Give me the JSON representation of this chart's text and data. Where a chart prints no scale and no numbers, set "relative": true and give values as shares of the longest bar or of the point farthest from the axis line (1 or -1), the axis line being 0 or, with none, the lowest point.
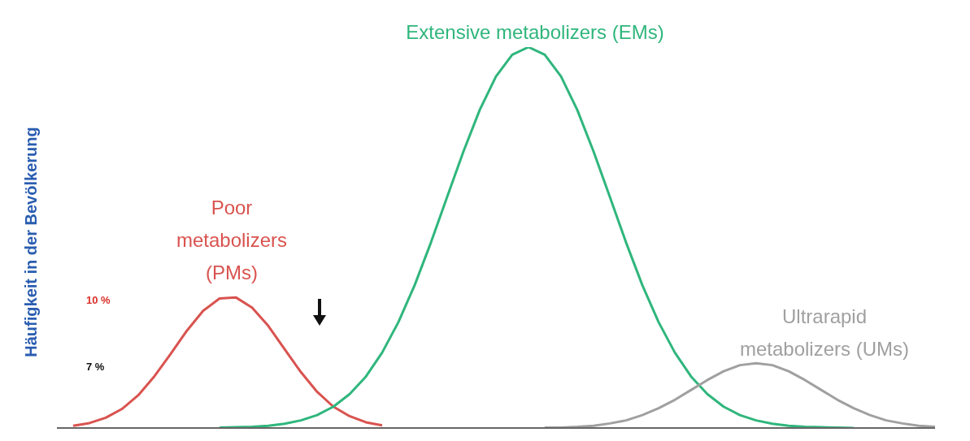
{
  "chart_data": {
    "type": "line",
    "relative": true,
    "ylabel": "Häufigkeit in der Bevölkerung",
    "categories": [
      null,
      null,
      null,
      null,
      null,
      null,
      null,
      null,
      null,
      null,
      null,
      null,
      null,
      null,
      null,
      null,
      null,
      null,
      null,
      null,
      null,
      null,
      null,
      null,
      null,
      null,
      null,
      null,
      null,
      null,
      null,
      null,
      null,
      null,
      null,
      null,
      null,
      null,
      null,
      null,
      null,
      null,
      null,
      null,
      null,
      null,
      null,
      null,
      null,
      null,
      null,
      null,
      null,
      null,
      null
    ],
    "series": [
      {
        "name": "Poor metabolizers (PMs)",
        "color": "#d9534f",
        "values": [
          null,
          0.006,
          0.013,
          0.027,
          0.05,
          0.086,
          0.136,
          0.195,
          0.256,
          0.308,
          0.34,
          0.343,
          0.316,
          0.268,
          0.207,
          0.147,
          0.095,
          0.056,
          0.031,
          0.015,
          0.007,
          null,
          null,
          null,
          null,
          null,
          null,
          null,
          null,
          null,
          null,
          null,
          null,
          null,
          null,
          null,
          null,
          null,
          null,
          null,
          null,
          null,
          null,
          null,
          null,
          null,
          null,
          null,
          null,
          null,
          null,
          null,
          null,
          null,
          null
        ]
      },
      {
        "name": "Extensive metabolizers (EMs)",
        "color": "#2fb67c",
        "values": [
          null,
          null,
          null,
          null,
          null,
          null,
          null,
          null,
          null,
          null,
          0.001,
          0.002,
          0.003,
          0.006,
          0.011,
          0.02,
          0.034,
          0.056,
          0.089,
          0.135,
          0.198,
          0.278,
          0.375,
          0.487,
          0.607,
          0.726,
          0.835,
          0.923,
          0.98,
          1,
          0.98,
          0.923,
          0.835,
          0.726,
          0.607,
          0.487,
          0.375,
          0.278,
          0.198,
          0.135,
          0.089,
          0.056,
          0.034,
          0.02,
          0.011,
          0.006,
          0.003,
          0.002,
          0.001,
          0,
          null,
          null,
          null,
          null,
          null
        ]
      },
      {
        "name": "Ultrarapid metabolizers (UMs)",
        "color": "#a0a0a0",
        "values": [
          null,
          null,
          null,
          null,
          null,
          null,
          null,
          null,
          null,
          null,
          null,
          null,
          null,
          null,
          null,
          null,
          null,
          null,
          null,
          null,
          null,
          null,
          null,
          null,
          null,
          null,
          null,
          null,
          null,
          null,
          0.001,
          0.001,
          0.003,
          0.006,
          0.012,
          0.02,
          0.034,
          0.052,
          0.074,
          0.1,
          0.126,
          0.149,
          0.165,
          0.17,
          0.165,
          0.149,
          0.126,
          0.1,
          0.074,
          0.052,
          0.034,
          0.02,
          0.012,
          0.006,
          0.003
        ]
      }
    ],
    "annotations": [
      "10 %",
      "7 %"
    ]
  }
}
